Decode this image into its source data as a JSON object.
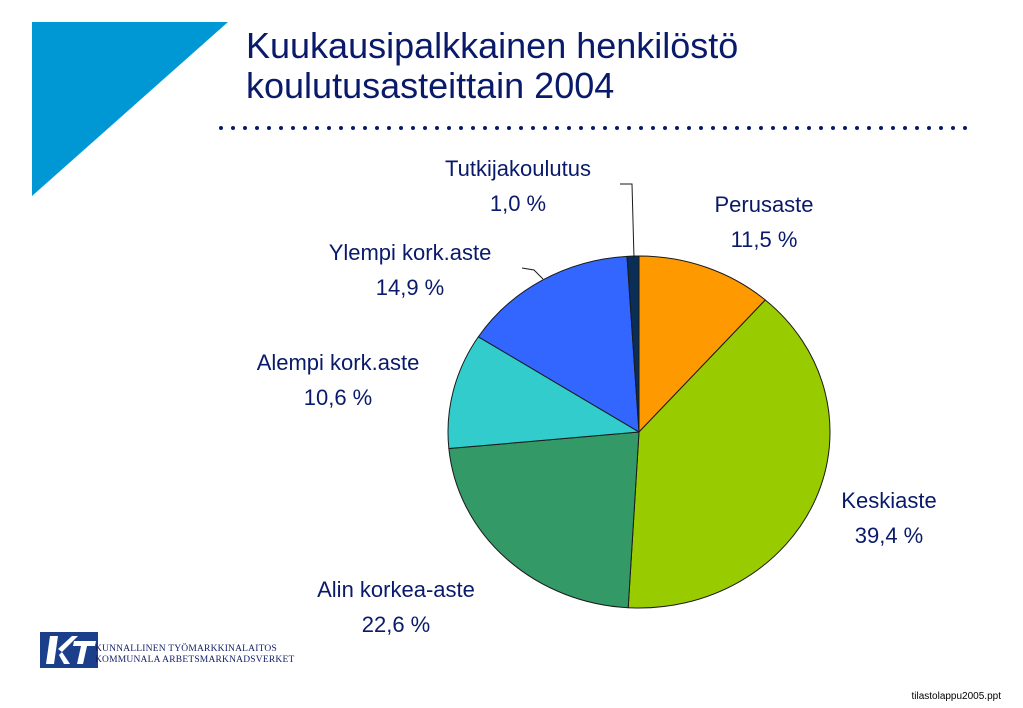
{
  "slide": {
    "title_line1": "Kuukausipalkkainen henkilöstö",
    "title_line2": "koulutusasteittain 2004",
    "org_line1": "KUNNALLINEN TYÖMARKKINALAITOS",
    "org_line2": "KOMMUNALA ARBETSMARKNADSVERKET",
    "filename": "tilastolappu2005.ppt",
    "accent_color": "#0098d4",
    "logo_color": "#1b3f8b"
  },
  "chart_data": {
    "type": "pie",
    "title": "Kuukausipalkkainen henkilöstö koulutusasteittain 2004",
    "unit": "%",
    "slices": [
      {
        "label": "Perusaste",
        "value": 11.5,
        "value_text": "11,5 %",
        "color": "#ff9900"
      },
      {
        "label": "Keskiaste",
        "value": 39.4,
        "value_text": "39,4 %",
        "color": "#99cc00"
      },
      {
        "label": "Alin korkea-aste",
        "value": 22.6,
        "value_text": "22,6 %",
        "color": "#339966"
      },
      {
        "label": "Alempi kork.aste",
        "value": 10.6,
        "value_text": "10,6 %",
        "color": "#33cccc"
      },
      {
        "label": "Ylempi kork.aste",
        "value": 14.9,
        "value_text": "14,9 %",
        "color": "#3366ff"
      },
      {
        "label": "Tutkijakoulutus",
        "value": 1.0,
        "value_text": "1,0 %",
        "color": "#0a2e55"
      }
    ]
  }
}
